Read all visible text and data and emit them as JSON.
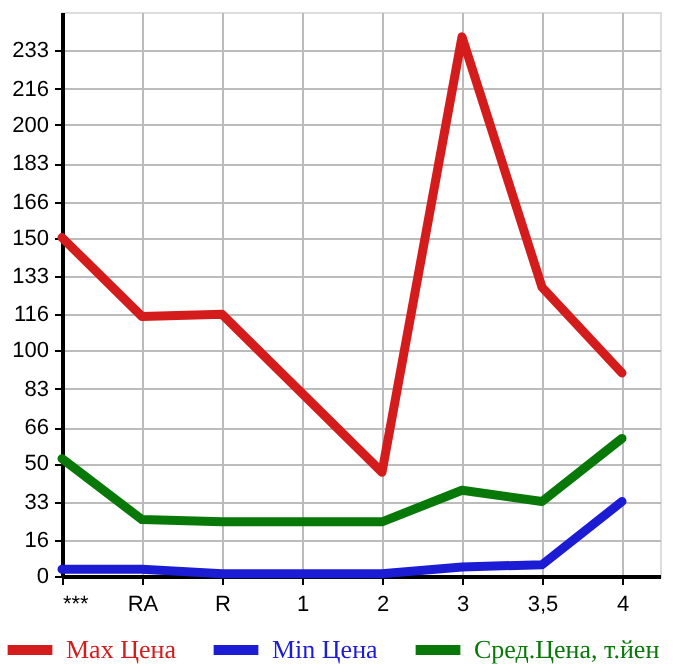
{
  "chart_data": {
    "type": "line",
    "categories": [
      "***",
      "RA",
      "R",
      "1",
      "2",
      "3",
      "3,5",
      "4"
    ],
    "series": [
      {
        "name": "Max Цена",
        "color": "#d41c1c",
        "values": [
          150,
          115,
          116,
          81,
          46,
          239,
          128,
          90
        ]
      },
      {
        "name": "Min Цена",
        "color": "#1c1cd4",
        "values": [
          3,
          3,
          1,
          1,
          1,
          4,
          5,
          33
        ]
      },
      {
        "name": "Сред.Цена, т.йен",
        "color": "#087808",
        "values": [
          52,
          25,
          24,
          24,
          24,
          38,
          33,
          61
        ]
      }
    ],
    "ylim": [
      0,
      250
    ],
    "yticks": [
      0,
      16,
      33,
      50,
      66,
      83,
      100,
      116,
      133,
      150,
      166,
      183,
      200,
      216,
      233
    ],
    "grid": true,
    "legend": "bottom",
    "marker": "none",
    "line_style": "solid"
  }
}
